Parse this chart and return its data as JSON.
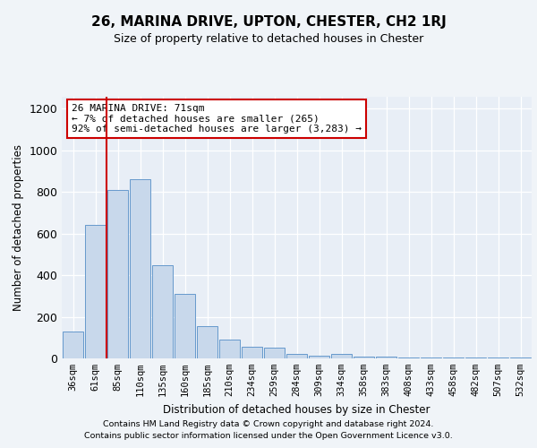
{
  "title": "26, MARINA DRIVE, UPTON, CHESTER, CH2 1RJ",
  "subtitle": "Size of property relative to detached houses in Chester",
  "xlabel": "Distribution of detached houses by size in Chester",
  "ylabel": "Number of detached properties",
  "categories": [
    "36sqm",
    "61sqm",
    "85sqm",
    "110sqm",
    "135sqm",
    "160sqm",
    "185sqm",
    "210sqm",
    "234sqm",
    "259sqm",
    "284sqm",
    "309sqm",
    "334sqm",
    "358sqm",
    "383sqm",
    "408sqm",
    "433sqm",
    "458sqm",
    "482sqm",
    "507sqm",
    "532sqm"
  ],
  "values": [
    128,
    640,
    808,
    860,
    450,
    310,
    155,
    90,
    55,
    50,
    20,
    13,
    20,
    8,
    8,
    5,
    3,
    3,
    3,
    3,
    3
  ],
  "bar_color": "#c8d8eb",
  "bar_edge_color": "#6699cc",
  "vline_color": "#cc0000",
  "annotation_text": "26 MARINA DRIVE: 71sqm\n← 7% of detached houses are smaller (265)\n92% of semi-detached houses are larger (3,283) →",
  "annotation_box_color": "#ffffff",
  "annotation_box_edge": "#cc0000",
  "ylim": [
    0,
    1260
  ],
  "yticks": [
    0,
    200,
    400,
    600,
    800,
    1000,
    1200
  ],
  "fig_bg_color": "#f0f4f8",
  "plot_bg_color": "#e8eef6",
  "footer1": "Contains HM Land Registry data © Crown copyright and database right 2024.",
  "footer2": "Contains public sector information licensed under the Open Government Licence v3.0."
}
